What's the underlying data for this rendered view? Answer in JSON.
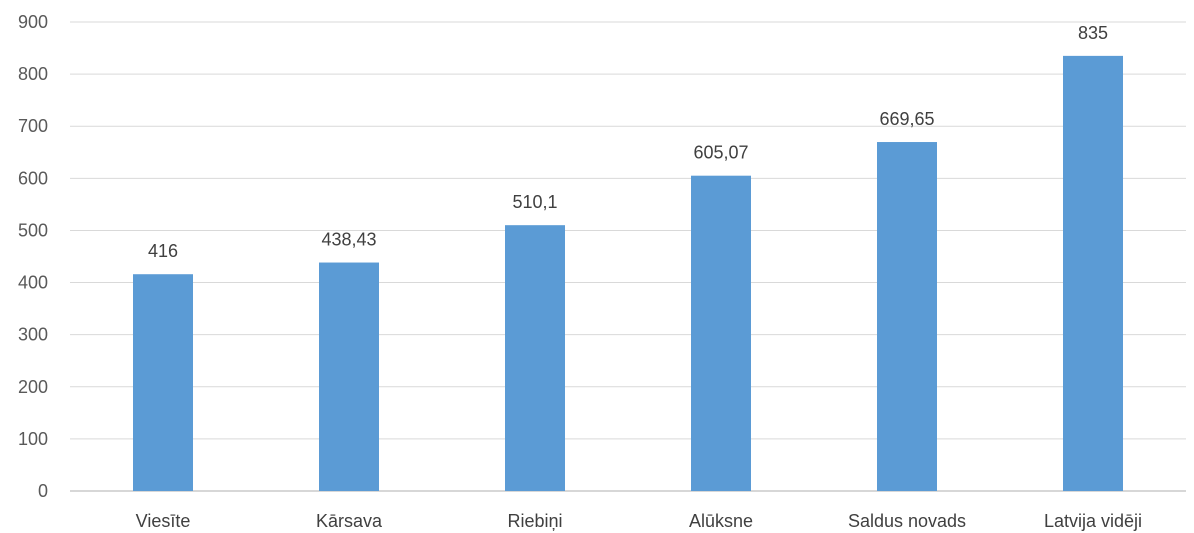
{
  "chart_data": {
    "type": "bar",
    "categories": [
      "Viesīte",
      "Kārsava",
      "Riebiņi",
      "Alūksne",
      "Saldus novads",
      "Latvija vidēji"
    ],
    "values": [
      416,
      438.43,
      510.1,
      605.07,
      669.65,
      835
    ],
    "data_labels": [
      "416",
      "438,43",
      "510,1",
      "605,07",
      "669,65",
      "835"
    ],
    "y_ticks": [
      "0",
      "100",
      "200",
      "300",
      "400",
      "500",
      "600",
      "700",
      "800",
      "900"
    ],
    "ylim": [
      0,
      900
    ],
    "grid": true,
    "bar_color": "#5b9bd5"
  }
}
